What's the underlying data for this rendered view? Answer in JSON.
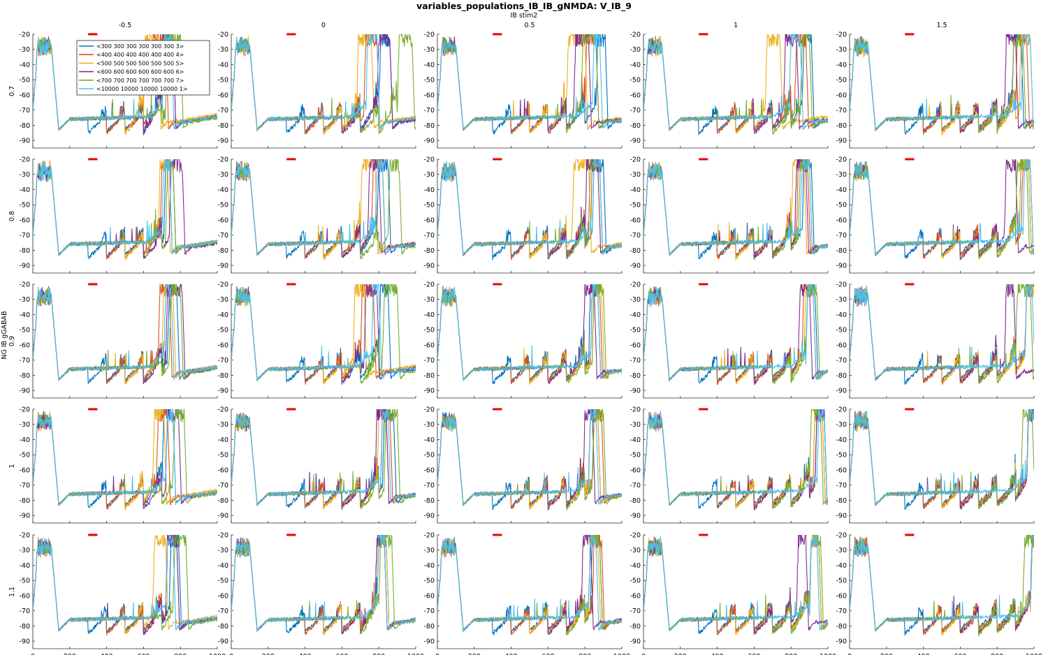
{
  "figure": {
    "title": "variables_populations_IB_IB_gNMDA: V_IB_9",
    "col_axis_label": "IB stim2",
    "row_axis_label": "NG IB gGABAB"
  },
  "chart_data": {
    "type": "line",
    "grid": false,
    "legend_placement": "top-left of first panel",
    "col_values": [
      "-0.5",
      "0",
      "0.5",
      "1",
      "1.5"
    ],
    "row_values": [
      "0.7",
      "0.8",
      "0.9",
      "1",
      "1.1"
    ],
    "xlim": [
      0,
      1000
    ],
    "ylim": [
      -95,
      -20
    ],
    "xticks": [
      0,
      200,
      400,
      600,
      800,
      1000
    ],
    "yticks": [
      -90,
      -80,
      -70,
      -60,
      -50,
      -40,
      -30,
      -20
    ],
    "stim_marker": {
      "x": [
        300,
        350
      ],
      "y": -20,
      "color": "#e8000b"
    },
    "series": [
      {
        "name": "<300 300 300 300 300 300 3>",
        "color": "#0072bd",
        "onset": 300
      },
      {
        "name": "<400 400 400 400 400 400 4>",
        "color": "#d95319",
        "onset": 400
      },
      {
        "name": "<500 500 500 500 500 500 5>",
        "color": "#edb120",
        "onset": 500
      },
      {
        "name": "<600 600 600 600 600 600 6>",
        "color": "#7e2f8e",
        "onset": 600
      },
      {
        "name": "<700 700 700 700 700 700 7>",
        "color": "#77ac30",
        "onset": 700
      },
      {
        "name": "<10000 10000 10000 10000 1>",
        "color": "#4dbeee",
        "onset": 10000
      }
    ],
    "burst_windows": [
      [
        [
          [
            700,
            760
          ],
          [
            640,
            720
          ],
          [
            600,
            680
          ],
          [
            690,
            760
          ],
          [
            720,
            800
          ],
          [
            700,
            750
          ]
        ],
        [
          [
            800,
            860
          ],
          [
            720,
            790
          ],
          [
            680,
            760
          ],
          [
            790,
            860
          ],
          [
            900,
            980
          ],
          [
            730,
            790
          ]
        ],
        [
          [
            860,
            910
          ],
          [
            800,
            860
          ],
          [
            700,
            800
          ],
          [
            740,
            820
          ],
          [
            780,
            860
          ],
          [
            840,
            880
          ]
        ],
        [
          [
            860,
            910
          ],
          [
            820,
            880
          ],
          [
            660,
            740
          ],
          [
            760,
            830
          ],
          [
            850,
            900
          ],
          [
            790,
            850
          ]
        ],
        [
          [
            880,
            930
          ],
          [
            900,
            960
          ],
          [
            920,
            980
          ],
          [
            840,
            900
          ],
          [
            880,
            940
          ],
          [
            930,
            980
          ]
        ]
      ],
      [
        [
          [
            710,
            760
          ],
          [
            690,
            740
          ],
          [
            680,
            730
          ],
          [
            740,
            810
          ],
          [
            720,
            760
          ],
          [
            700,
            740
          ]
        ],
        [
          [
            790,
            850
          ],
          [
            760,
            820
          ],
          [
            700,
            780
          ],
          [
            740,
            800
          ],
          [
            850,
            910
          ],
          [
            780,
            820
          ]
        ],
        [
          [
            840,
            900
          ],
          [
            830,
            880
          ],
          [
            730,
            820
          ],
          [
            800,
            870
          ],
          [
            820,
            880
          ],
          [
            840,
            880
          ]
        ],
        [
          [
            860,
            910
          ],
          [
            830,
            890
          ],
          [
            800,
            870
          ],
          [
            820,
            880
          ],
          [
            840,
            900
          ],
          [
            850,
            900
          ]
        ],
        [
          [
            920,
            970
          ],
          [
            930,
            980
          ],
          [
            920,
            970
          ],
          [
            840,
            900
          ],
          [
            900,
            960
          ],
          [
            940,
            980
          ]
        ]
      ],
      [
        [
          [
            730,
            780
          ],
          [
            680,
            740
          ],
          [
            700,
            760
          ],
          [
            720,
            810
          ],
          [
            740,
            800
          ],
          [
            710,
            750
          ]
        ],
        [
          [
            800,
            850
          ],
          [
            700,
            770
          ],
          [
            660,
            720
          ],
          [
            720,
            790
          ],
          [
            820,
            900
          ],
          [
            760,
            800
          ]
        ],
        [
          [
            820,
            870
          ],
          [
            830,
            880
          ],
          [
            840,
            890
          ],
          [
            790,
            850
          ],
          [
            840,
            900
          ],
          [
            830,
            870
          ]
        ],
        [
          [
            880,
            930
          ],
          [
            860,
            920
          ],
          [
            870,
            920
          ],
          [
            840,
            900
          ],
          [
            880,
            940
          ],
          [
            880,
            920
          ]
        ],
        [
          [
            950,
            1000
          ],
          [
            950,
            1000
          ],
          [
            950,
            1000
          ],
          [
            840,
            890
          ],
          [
            900,
            980
          ],
          [
            950,
            990
          ]
        ]
      ],
      [
        [
          [
            700,
            760
          ],
          [
            670,
            730
          ],
          [
            650,
            710
          ],
          [
            720,
            790
          ],
          [
            760,
            820
          ],
          [
            720,
            760
          ]
        ],
        [
          [
            820,
            880
          ],
          [
            810,
            860
          ],
          [
            790,
            840
          ],
          [
            780,
            840
          ],
          [
            830,
            900
          ],
          [
            810,
            850
          ]
        ],
        [
          [
            820,
            870
          ],
          [
            840,
            890
          ],
          [
            820,
            870
          ],
          [
            790,
            840
          ],
          [
            840,
            900
          ],
          [
            820,
            860
          ]
        ],
        [
          [
            930,
            980
          ],
          [
            920,
            970
          ],
          [
            920,
            970
          ],
          [
            930,
            980
          ],
          [
            900,
            960
          ],
          [
            940,
            980
          ]
        ],
        [
          [
            960,
            1000
          ],
          [
            960,
            1000
          ],
          [
            960,
            1000
          ],
          [
            960,
            1000
          ],
          [
            930,
            990
          ],
          [
            960,
            1000
          ]
        ]
      ],
      [
        [
          [
            740,
            790
          ],
          [
            720,
            780
          ],
          [
            650,
            720
          ],
          [
            720,
            780
          ],
          [
            760,
            830
          ],
          [
            720,
            760
          ]
        ],
        [
          [
            790,
            840
          ],
          [
            780,
            830
          ],
          [
            790,
            840
          ],
          [
            780,
            830
          ],
          [
            800,
            870
          ],
          [
            790,
            830
          ]
        ],
        [
          [
            830,
            880
          ],
          [
            840,
            890
          ],
          [
            820,
            870
          ],
          [
            780,
            830
          ],
          [
            820,
            880
          ],
          [
            820,
            860
          ]
        ],
        [
          [
            900,
            950
          ],
          [
            900,
            950
          ],
          [
            900,
            950
          ],
          [
            830,
            880
          ],
          [
            900,
            960
          ],
          [
            900,
            940
          ]
        ],
        [
          [
            980,
            1000
          ],
          [
            980,
            1000
          ],
          [
            980,
            1000
          ],
          [
            980,
            1000
          ],
          [
            940,
            1000
          ],
          [
            980,
            1000
          ]
        ]
      ]
    ]
  }
}
